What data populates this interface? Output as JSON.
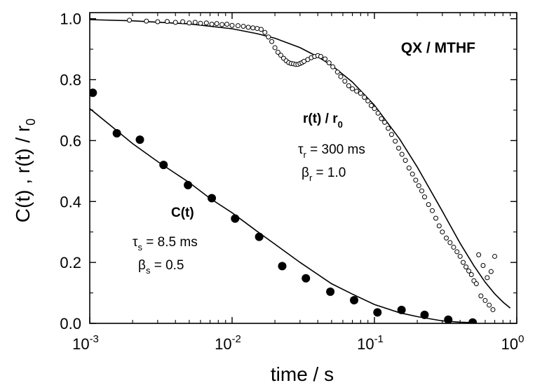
{
  "chart_data": {
    "type": "scatter",
    "xscale": "log",
    "xlim": [
      0.001,
      1
    ],
    "ylim": [
      0,
      1.02
    ],
    "xlabel": "time / s",
    "ylabel": "C(t) ,  r(t) / r",
    "ylabel_sub": "0",
    "x_ticks": [
      {
        "value": 0.001,
        "base": "10",
        "exp": "-3"
      },
      {
        "value": 0.01,
        "base": "10",
        "exp": "-2"
      },
      {
        "value": 0.1,
        "base": "10",
        "exp": "-1"
      },
      {
        "value": 1,
        "base": "10",
        "exp": "0"
      }
    ],
    "y_ticks": [
      {
        "value": 0.0,
        "label": "0.0"
      },
      {
        "value": 0.2,
        "label": "0.2"
      },
      {
        "value": 0.4,
        "label": "0.4"
      },
      {
        "value": 0.6,
        "label": "0.6"
      },
      {
        "value": 0.8,
        "label": "0.8"
      },
      {
        "value": 1.0,
        "label": "1.0"
      }
    ],
    "title": "QX / MTHF",
    "series": [
      {
        "marker": "filled-circle",
        "x": [
          0.00105,
          0.00155,
          0.00225,
          0.0033,
          0.0049,
          0.0072,
          0.0105,
          0.0155,
          0.0225,
          0.033,
          0.049,
          0.072,
          0.105,
          0.155,
          0.225,
          0.33,
          0.49
        ],
        "y": [
          0.757,
          0.624,
          0.603,
          0.52,
          0.454,
          0.411,
          0.344,
          0.284,
          0.188,
          0.148,
          0.104,
          0.076,
          0.036,
          0.044,
          0.028,
          0.012,
          0.003
        ]
      },
      {
        "marker": "open-circle",
        "x": [
          0.0019,
          0.0025,
          0.003,
          0.0035,
          0.004,
          0.0045,
          0.005,
          0.0055,
          0.006,
          0.0066,
          0.0072,
          0.0078,
          0.0085,
          0.0092,
          0.01,
          0.011,
          0.012,
          0.013,
          0.014,
          0.015,
          0.016,
          0.017,
          0.018,
          0.019,
          0.02,
          0.021,
          0.022,
          0.023,
          0.024,
          0.025,
          0.026,
          0.027,
          0.028,
          0.029,
          0.03,
          0.031,
          0.032,
          0.034,
          0.036,
          0.038,
          0.04,
          0.042,
          0.045,
          0.048,
          0.051,
          0.055,
          0.058,
          0.062,
          0.066,
          0.07,
          0.075,
          0.08,
          0.085,
          0.09,
          0.095,
          0.1,
          0.106,
          0.112,
          0.118,
          0.125,
          0.132,
          0.14,
          0.148,
          0.156,
          0.165,
          0.175,
          0.185,
          0.195,
          0.205,
          0.215,
          0.225,
          0.24,
          0.255,
          0.27,
          0.285,
          0.3,
          0.32,
          0.34,
          0.36,
          0.38,
          0.4,
          0.42,
          0.44,
          0.46,
          0.48,
          0.5,
          0.52,
          0.54,
          0.56,
          0.58,
          0.6,
          0.62,
          0.64,
          0.66,
          0.68,
          0.7
        ],
        "y": [
          0.995,
          0.992,
          0.99,
          0.991,
          0.988,
          0.99,
          0.986,
          0.988,
          0.985,
          0.986,
          0.982,
          0.984,
          0.981,
          0.982,
          0.978,
          0.977,
          0.975,
          0.972,
          0.97,
          0.968,
          0.965,
          0.955,
          0.94,
          0.925,
          0.905,
          0.89,
          0.88,
          0.87,
          0.862,
          0.856,
          0.853,
          0.852,
          0.85,
          0.85,
          0.853,
          0.856,
          0.86,
          0.866,
          0.872,
          0.876,
          0.879,
          0.876,
          0.868,
          0.855,
          0.842,
          0.825,
          0.81,
          0.795,
          0.78,
          0.77,
          0.762,
          0.755,
          0.742,
          0.73,
          0.715,
          0.705,
          0.69,
          0.672,
          0.66,
          0.64,
          0.62,
          0.598,
          0.575,
          0.555,
          0.535,
          0.51,
          0.49,
          0.47,
          0.452,
          0.435,
          0.415,
          0.39,
          0.37,
          0.345,
          0.32,
          0.3,
          0.28,
          0.265,
          0.25,
          0.235,
          0.22,
          0.2,
          0.185,
          0.172,
          0.16,
          0.14,
          0.13,
          0.225,
          0.09,
          0.19,
          0.075,
          0.15,
          0.06,
          0.17,
          0.045,
          0.22
        ]
      }
    ],
    "fit_curves": [
      {
        "label": "C(t) fit",
        "x": [
          0.001,
          0.0015,
          0.002,
          0.003,
          0.005,
          0.007,
          0.01,
          0.015,
          0.02,
          0.03,
          0.05,
          0.07,
          0.1,
          0.15,
          0.2,
          0.3,
          0.4,
          0.5
        ],
        "y": [
          0.705,
          0.638,
          0.59,
          0.531,
          0.462,
          0.41,
          0.363,
          0.302,
          0.26,
          0.2,
          0.13,
          0.096,
          0.062,
          0.035,
          0.022,
          0.008,
          0.004,
          0.002
        ]
      },
      {
        "label": "r(t) fit",
        "x": [
          0.001,
          0.002,
          0.005,
          0.01,
          0.015,
          0.02,
          0.03,
          0.04,
          0.05,
          0.07,
          0.1,
          0.15,
          0.2,
          0.3,
          0.4,
          0.5,
          0.6,
          0.7,
          0.8,
          0.9
        ],
        "y": [
          0.997,
          0.993,
          0.983,
          0.967,
          0.951,
          0.936,
          0.905,
          0.875,
          0.847,
          0.792,
          0.716,
          0.606,
          0.513,
          0.368,
          0.263,
          0.189,
          0.135,
          0.097,
          0.07,
          0.05
        ]
      }
    ],
    "annotations": {
      "rt": {
        "name_a": "r(t) / r",
        "name_sub": "0",
        "tau_sym": "τ",
        "tau_sub": "r",
        "tau_val": " = 300 ms",
        "beta_sym": "β",
        "beta_sub": "r",
        "beta_val": " = 1.0"
      },
      "ct": {
        "name": "C(t)",
        "tau_sym": "τ",
        "tau_sub": "s",
        "tau_val": " = 8.5 ms",
        "beta_sym": "β",
        "beta_sub": "s",
        "beta_val": " = 0.5"
      }
    }
  }
}
